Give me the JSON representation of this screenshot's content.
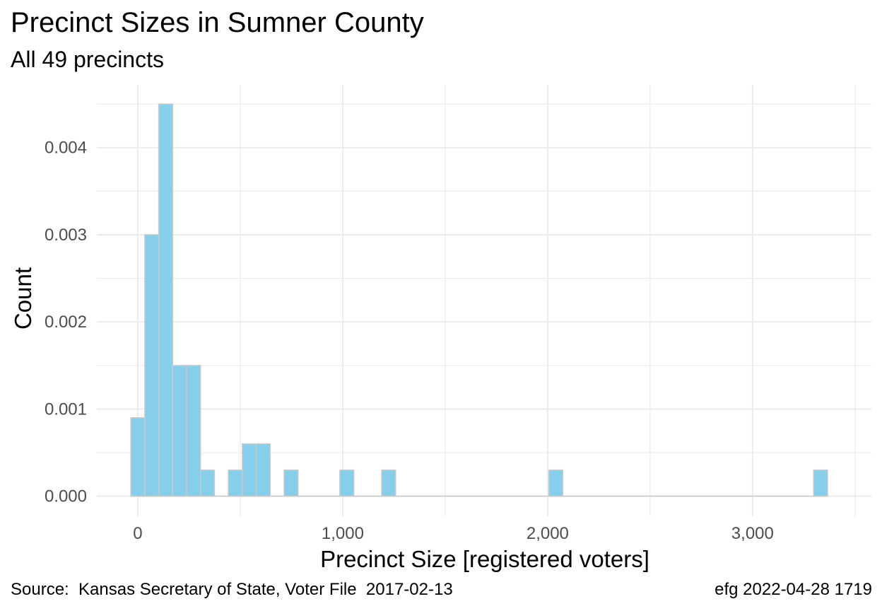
{
  "chart_data": {
    "type": "histogram",
    "title": "Precinct Sizes in Sumner County",
    "subtitle": "All 49 precincts",
    "xlabel": "Precinct Size [registered voters]",
    "ylabel": "Count",
    "caption_left": "Source:  Kansas Secretary of State, Voter File  2017-02-13",
    "caption_right": "efg 2022-04-28 1719",
    "bin_width": 68,
    "bins": [
      {
        "x_start": -34,
        "x_end": 34,
        "density": 0.0009
      },
      {
        "x_start": 34,
        "x_end": 102,
        "density": 0.003
      },
      {
        "x_start": 102,
        "x_end": 170,
        "density": 0.0045
      },
      {
        "x_start": 170,
        "x_end": 238,
        "density": 0.0015
      },
      {
        "x_start": 238,
        "x_end": 306,
        "density": 0.0015
      },
      {
        "x_start": 306,
        "x_end": 374,
        "density": 0.0003
      },
      {
        "x_start": 442,
        "x_end": 510,
        "density": 0.0003
      },
      {
        "x_start": 510,
        "x_end": 578,
        "density": 0.0006
      },
      {
        "x_start": 578,
        "x_end": 646,
        "density": 0.0006
      },
      {
        "x_start": 714,
        "x_end": 782,
        "density": 0.0003
      },
      {
        "x_start": 986,
        "x_end": 1054,
        "density": 0.0003
      },
      {
        "x_start": 1190,
        "x_end": 1258,
        "density": 0.0003
      },
      {
        "x_start": 2006,
        "x_end": 2074,
        "density": 0.0003
      },
      {
        "x_start": 3298,
        "x_end": 3366,
        "density": 0.0003
      }
    ],
    "xlim": [
      -200,
      3580
    ],
    "ylim": [
      -0.00023,
      0.00472
    ],
    "x_ticks": [
      0,
      1000,
      2000,
      3000
    ],
    "x_tick_labels": [
      "0",
      "1,000",
      "2,000",
      "3,000"
    ],
    "y_ticks": [
      0,
      0.001,
      0.002,
      0.003,
      0.004
    ],
    "y_tick_labels": [
      "0.000",
      "0.001",
      "0.002",
      "0.003",
      "0.004"
    ],
    "grid": true,
    "colors": {
      "bar_fill": "#87ceeb",
      "bar_stroke": "#c9c9c9",
      "grid": "#ebebeb",
      "baseline": "#c9c9c9",
      "tick_text": "#4d4d4d"
    }
  }
}
